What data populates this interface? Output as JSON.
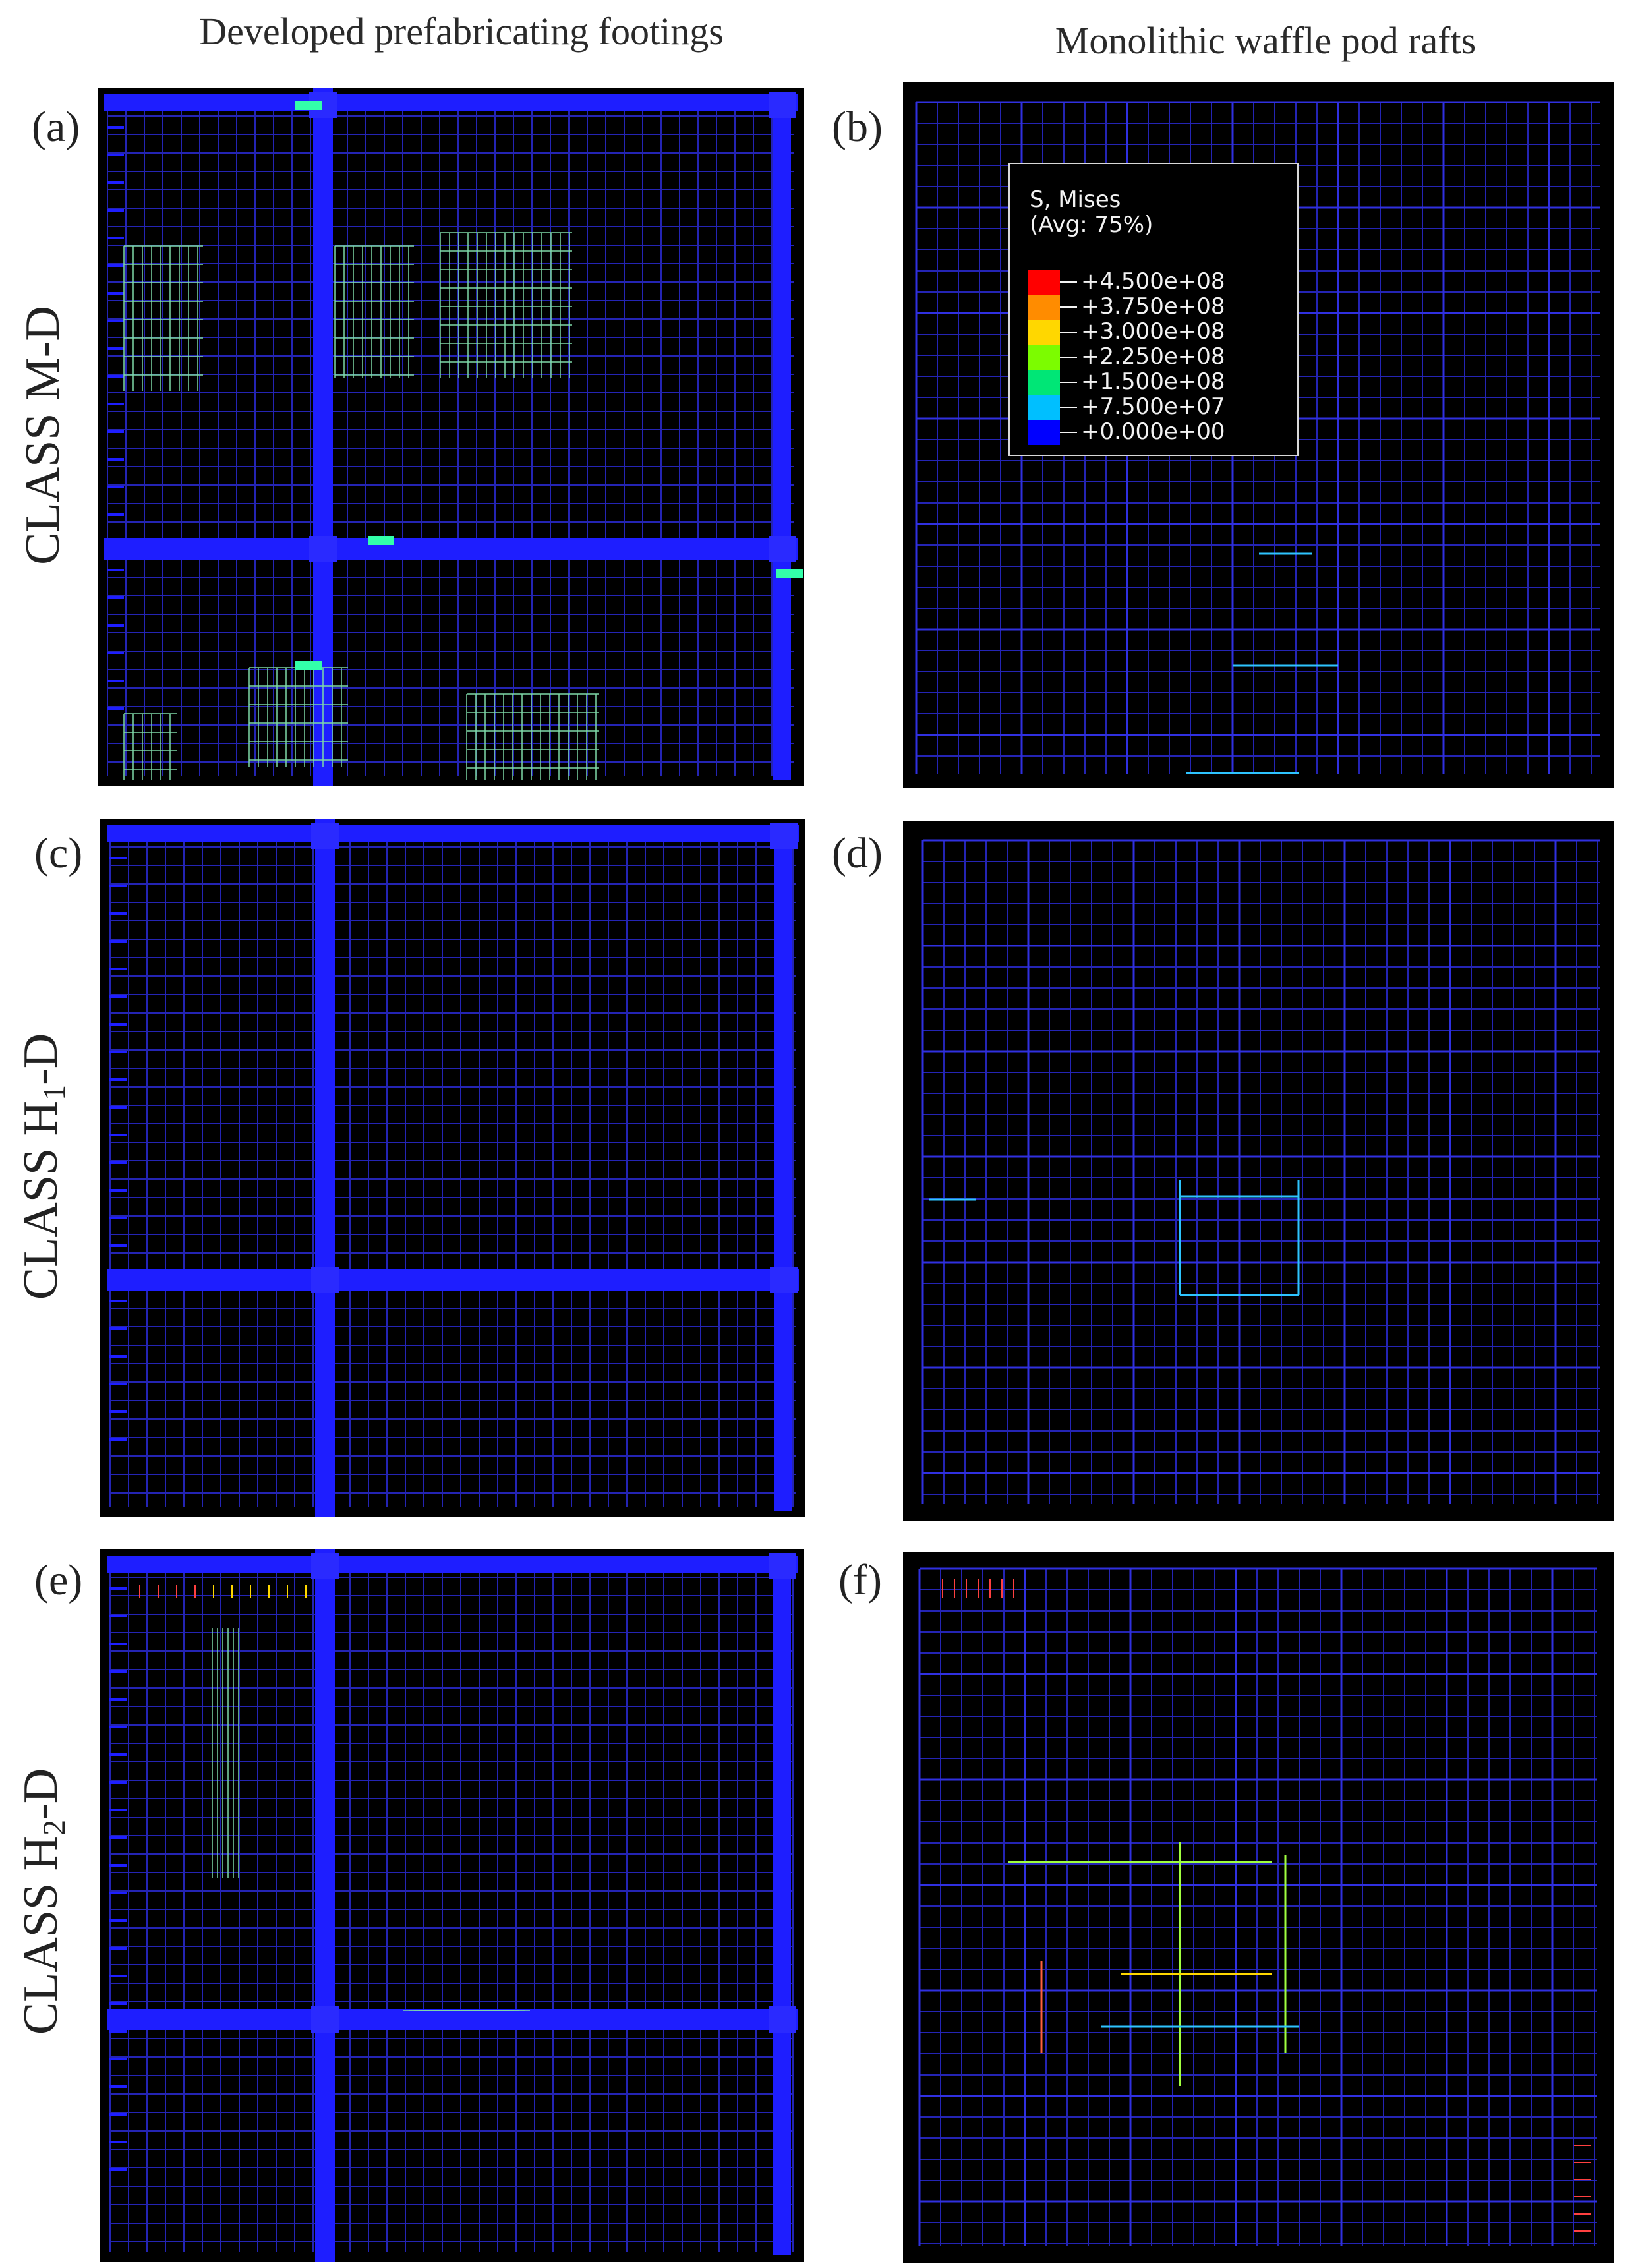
{
  "columns": {
    "left_title": "Developed prefabricating footings",
    "right_title": "Monolithic waffle pod rafts"
  },
  "rows": [
    {
      "class_prefix": "CLASS ",
      "class_main": "M",
      "class_sub": "",
      "class_suffix": "-D"
    },
    {
      "class_prefix": "CLASS ",
      "class_main": "H",
      "class_sub": "1",
      "class_suffix": "-D"
    },
    {
      "class_prefix": "CLASS ",
      "class_main": "H",
      "class_sub": "2",
      "class_suffix": "-D"
    }
  ],
  "panels": {
    "a": {
      "label": "(a)"
    },
    "b": {
      "label": "(b)"
    },
    "c": {
      "label": "(c)"
    },
    "d": {
      "label": "(d)"
    },
    "e": {
      "label": "(e)"
    },
    "f": {
      "label": "(f)"
    }
  },
  "legend": {
    "title_line1": "S, Mises",
    "title_line2": "(Avg: 75%)",
    "entries": [
      {
        "value": "+4.500e+08",
        "color": "#ff0000"
      },
      {
        "value": "+3.750e+08",
        "color": "#ff8c00"
      },
      {
        "value": "+3.000e+08",
        "color": "#ffd700"
      },
      {
        "value": "+2.250e+08",
        "color": "#7cfc00"
      },
      {
        "value": "+1.500e+08",
        "color": "#00e676"
      },
      {
        "value": "+7.500e+07",
        "color": "#00bfff"
      },
      {
        "value": "+0.000e+00",
        "color": "#0000ff"
      }
    ]
  },
  "colors": {
    "background": "#000000",
    "mesh": "#2424b4",
    "beam": "#1e1eff",
    "high_stress": "#7fd9a8"
  }
}
